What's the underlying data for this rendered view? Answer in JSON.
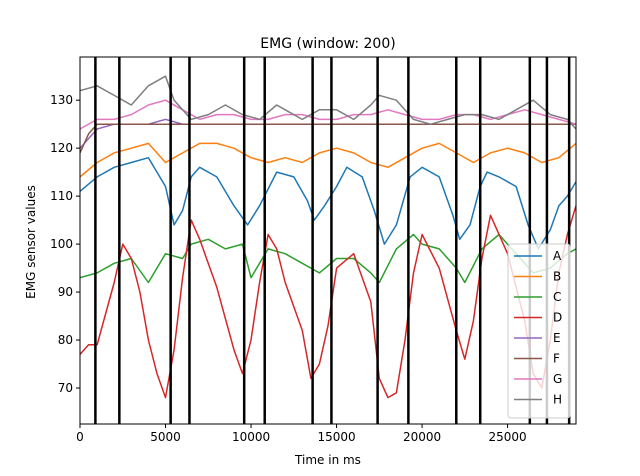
{
  "chart_data": {
    "type": "line",
    "title": "EMG (window: 200)",
    "xlabel": "Time in ms",
    "ylabel": "EMG sensor values",
    "xlim": [
      0,
      29000
    ],
    "ylim": [
      62.5,
      139
    ],
    "xticks": [
      0,
      5000,
      10000,
      15000,
      20000,
      25000
    ],
    "yticks": [
      70,
      80,
      90,
      100,
      110,
      120,
      130
    ],
    "grid": false,
    "legend_position": "lower-right",
    "vlines": [
      900,
      2300,
      5300,
      6400,
      9600,
      10800,
      13600,
      14700,
      17400,
      19200,
      22000,
      23400,
      26300,
      27300,
      28600
    ],
    "series": [
      {
        "name": "A",
        "color": "#1f77b4",
        "x": [
          0,
          1000,
          2000,
          3000,
          4000,
          5000,
          5500,
          6000,
          6500,
          7000,
          8000,
          9000,
          9800,
          10500,
          11500,
          12500,
          13300,
          13700,
          14300,
          15000,
          15600,
          16500,
          17200,
          17800,
          18500,
          19300,
          20000,
          21000,
          21800,
          22200,
          22800,
          23400,
          23800,
          24500,
          25500,
          26200,
          26800,
          27500,
          28000,
          28500,
          29000
        ],
        "values": [
          111,
          114,
          116,
          117,
          118,
          112,
          104,
          107,
          114,
          116,
          114,
          108,
          104,
          108,
          115,
          114,
          109,
          105,
          108,
          112,
          116,
          114,
          107,
          100,
          104,
          114,
          116,
          114,
          106,
          101,
          104,
          112,
          115,
          114,
          112,
          104,
          99,
          103,
          108,
          110,
          113
        ]
      },
      {
        "name": "B",
        "color": "#ff7f0e",
        "x": [
          0,
          1000,
          2000,
          3000,
          4000,
          5000,
          6000,
          7000,
          8000,
          9000,
          10000,
          11000,
          12000,
          13000,
          14000,
          15000,
          16000,
          17000,
          18000,
          19000,
          20000,
          21000,
          22000,
          23000,
          24000,
          25000,
          26000,
          27000,
          28000,
          29000
        ],
        "values": [
          114,
          117,
          119,
          120,
          121,
          117,
          119,
          121,
          121,
          120,
          118,
          117,
          118,
          117,
          119,
          120,
          119,
          117,
          116,
          118,
          120,
          121,
          119,
          117,
          119,
          120,
          119,
          117,
          118,
          121
        ]
      },
      {
        "name": "C",
        "color": "#2ca02c",
        "x": [
          0,
          1000,
          2000,
          3000,
          4000,
          5000,
          6000,
          6500,
          7500,
          8500,
          9500,
          10000,
          11000,
          12000,
          13000,
          14000,
          15000,
          16000,
          17000,
          17500,
          18500,
          19500,
          20000,
          21000,
          22000,
          22500,
          23500,
          24500,
          25500,
          26500,
          27500,
          28500,
          29000
        ],
        "values": [
          93,
          94,
          96,
          97,
          92,
          98,
          97,
          100,
          101,
          99,
          100,
          93,
          99,
          98,
          96,
          94,
          97,
          97,
          94,
          92,
          99,
          102,
          100,
          99,
          95,
          92,
          99,
          102,
          98,
          94,
          95,
          98,
          99
        ]
      },
      {
        "name": "D",
        "color": "#d62728",
        "x": [
          0,
          500,
          1000,
          2000,
          2500,
          3000,
          3500,
          4000,
          4500,
          5000,
          5500,
          6000,
          6500,
          7000,
          8000,
          9000,
          9500,
          10000,
          10500,
          11000,
          11500,
          12000,
          13000,
          13500,
          14000,
          14500,
          15000,
          16000,
          17000,
          17500,
          18000,
          18500,
          19000,
          19500,
          20000,
          21000,
          22000,
          22500,
          23000,
          23500,
          24000,
          25000,
          26000,
          26500,
          27000,
          27500,
          28000,
          28500,
          29000
        ],
        "values": [
          77,
          79,
          79,
          92,
          100,
          97,
          90,
          80,
          73,
          68,
          78,
          93,
          105,
          101,
          91,
          78,
          73,
          80,
          92,
          102,
          99,
          92,
          82,
          72,
          75,
          83,
          95,
          98,
          88,
          72,
          68,
          69,
          80,
          94,
          102,
          95,
          82,
          76,
          84,
          97,
          106,
          98,
          84,
          73,
          70,
          80,
          94,
          102,
          108
        ]
      },
      {
        "name": "E",
        "color": "#9467bd",
        "x": [
          0,
          1000,
          2000,
          3000,
          4000,
          5000,
          6000,
          7000,
          8000,
          9000,
          10000,
          11000,
          12000,
          13000,
          14000,
          15000,
          16000,
          17000,
          18000,
          19000,
          20000,
          21000,
          22000,
          23000,
          24000,
          25000,
          26000,
          27000,
          28000,
          29000
        ],
        "values": [
          120,
          124,
          125,
          125,
          125,
          126,
          125,
          125,
          125,
          125,
          125,
          125,
          125,
          125,
          125,
          125,
          125,
          125,
          125,
          125,
          125,
          125,
          125,
          125,
          125,
          125,
          125,
          125,
          125,
          125
        ]
      },
      {
        "name": "F",
        "color": "#8c564b",
        "x": [
          0,
          500,
          1000,
          2000,
          3000,
          4000,
          5000,
          6000,
          7000,
          8000,
          9000,
          10000,
          11000,
          12000,
          13000,
          14000,
          15000,
          16000,
          17000,
          18000,
          19000,
          20000,
          21000,
          22000,
          23000,
          24000,
          25000,
          26000,
          27000,
          28000,
          29000
        ],
        "values": [
          119,
          123,
          125,
          125,
          125,
          125,
          125,
          125,
          125,
          125,
          125,
          125,
          125,
          125,
          125,
          125,
          125,
          125,
          125,
          125,
          125,
          125,
          125,
          125,
          125,
          125,
          125,
          125,
          125,
          125,
          125
        ]
      },
      {
        "name": "G",
        "color": "#e377c2",
        "x": [
          0,
          1000,
          2000,
          3000,
          4000,
          5000,
          6000,
          7000,
          8000,
          9000,
          10000,
          11000,
          12000,
          13000,
          14000,
          15000,
          16000,
          17000,
          18000,
          19000,
          20000,
          21000,
          22000,
          23000,
          24000,
          25000,
          26000,
          27000,
          28000,
          29000
        ],
        "values": [
          124,
          126,
          126,
          127,
          129,
          130,
          128,
          126,
          127,
          127,
          126,
          126,
          127,
          127,
          126,
          126,
          127,
          127,
          128,
          127,
          126,
          126,
          127,
          127,
          126,
          127,
          128,
          127,
          126,
          125
        ]
      },
      {
        "name": "H",
        "color": "#7f7f7f",
        "x": [
          0,
          1000,
          2000,
          3000,
          4000,
          5000,
          5500,
          6500,
          7500,
          8500,
          9500,
          10500,
          11500,
          12000,
          13000,
          14000,
          15000,
          16000,
          17000,
          17500,
          18500,
          19500,
          20500,
          21500,
          22500,
          23500,
          24500,
          25500,
          26500,
          27500,
          28500,
          29000
        ],
        "values": [
          132,
          133,
          131,
          129,
          133,
          135,
          130,
          126,
          127,
          129,
          127,
          126,
          129,
          128,
          126,
          128,
          128,
          126,
          129,
          131,
          130,
          126,
          125,
          126,
          127,
          127,
          126,
          128,
          130,
          127,
          126,
          124
        ]
      }
    ]
  }
}
